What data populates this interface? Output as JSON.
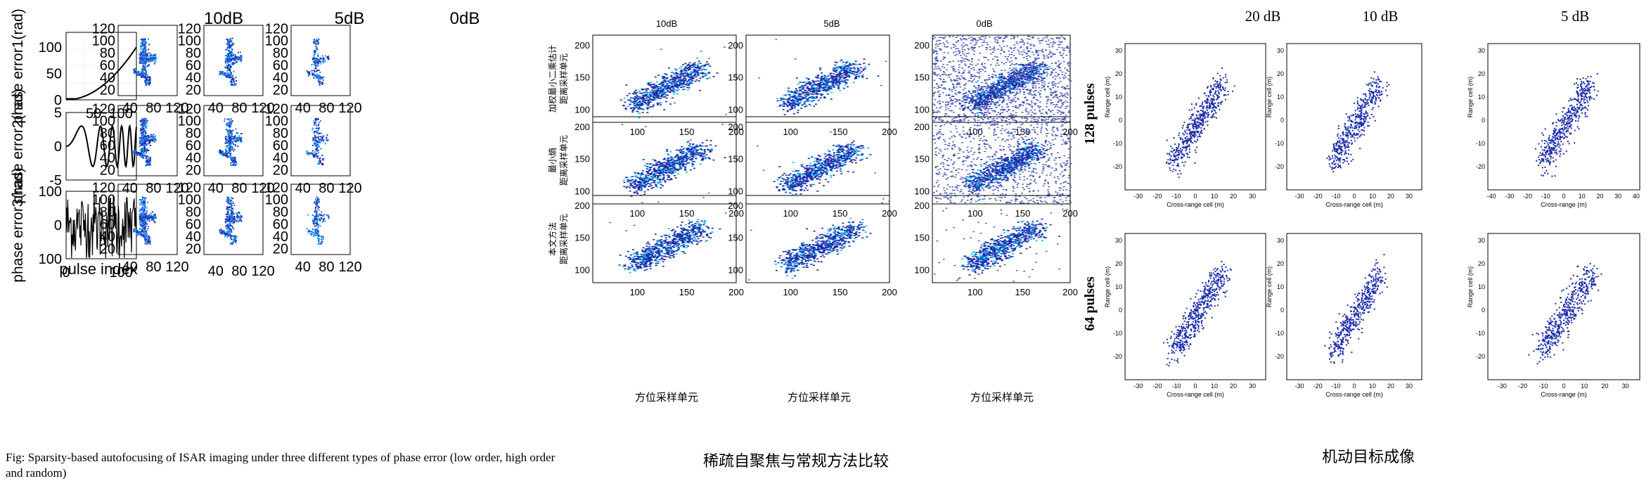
{
  "chart_data": [
    {
      "panel": "left",
      "type": "scatter",
      "col_titles": [
        "10dB",
        "5dB",
        "0dB"
      ],
      "row_ylabels": [
        "phase error1(rad)",
        "phase error2(rad)",
        "phase error3(rad)"
      ],
      "phase_xlabel": "pulse index",
      "phase_rows": [
        {
          "type": "line",
          "function": "quadratic",
          "xlim": [
            0,
            128
          ],
          "ylim": [
            0,
            128
          ],
          "xticks": [
            50,
            100
          ],
          "yticks": [
            0,
            50,
            100
          ],
          "grid": true
        },
        {
          "type": "line",
          "function": "sinusoid",
          "xlim": [
            0,
            128
          ],
          "ylim": [
            -5,
            5
          ],
          "xticks": [],
          "yticks": [
            -5,
            0,
            5
          ],
          "grid": false
        },
        {
          "type": "line",
          "function": "random",
          "xlim": [
            0,
            128
          ],
          "ylim": [
            -100,
            100
          ],
          "xticks": [
            0,
            100
          ],
          "yticks": [
            -100,
            0,
            100
          ],
          "ytick_labels": [
            "100",
            "0",
            "100"
          ],
          "grid": false
        }
      ],
      "image_xticks": [
        40,
        80,
        120
      ],
      "image_yticks": [
        20,
        40,
        60,
        80,
        100,
        120
      ],
      "xlim": [
        20,
        120
      ],
      "ylim": [
        10,
        125
      ]
    },
    {
      "panel": "middle",
      "type": "heatmap",
      "col_titles": [
        "10dB",
        "5dB",
        "0dB"
      ],
      "row_ylabels": [
        "加权最小二乘估计\n距离采样单元",
        "最小熵\n距离采样单元",
        "本文方法\n距离采样单元"
      ],
      "xlabel": "方位采样单元",
      "xticks": [
        100,
        150,
        200
      ],
      "yticks": [
        100,
        150,
        200
      ],
      "xlim": [
        55,
        200
      ],
      "ylim": [
        80,
        215
      ]
    },
    {
      "panel": "right",
      "type": "scatter",
      "col_titles": [
        "20 dB",
        "10 dB",
        "5 dB"
      ],
      "row_labels": [
        "128 pulses",
        "64 pulses"
      ],
      "xlabels": [
        "Cross-range cell (m)",
        "Cross-range cell (m)",
        "Cross-range (m)"
      ],
      "ylabel": "Range cell (m)",
      "xticks_default": [
        -30,
        -20,
        -10,
        0,
        10,
        20,
        30
      ],
      "xticks_wide": [
        -40,
        -30,
        -20,
        -10,
        0,
        10,
        20,
        30,
        40
      ],
      "yticks": [
        -20,
        -10,
        0,
        10,
        20,
        30
      ],
      "xlim": [
        -37,
        37
      ],
      "xlim_wide": [
        -42,
        42
      ],
      "ylim": [
        -30,
        33
      ]
    }
  ],
  "captions": {
    "left": "Fig: Sparsity-based autofocusing of ISAR imaging under three different types of phase error (low order, high order and random)",
    "middle": "稀疏自聚焦与常规方法比较",
    "right": "机动目标成像"
  },
  "colors": {
    "axis": "#000000",
    "scatter": "#1a2ca8",
    "accent": "#2f6ee0",
    "noise": "#3a4fb0",
    "hot": "#00c0ff"
  }
}
